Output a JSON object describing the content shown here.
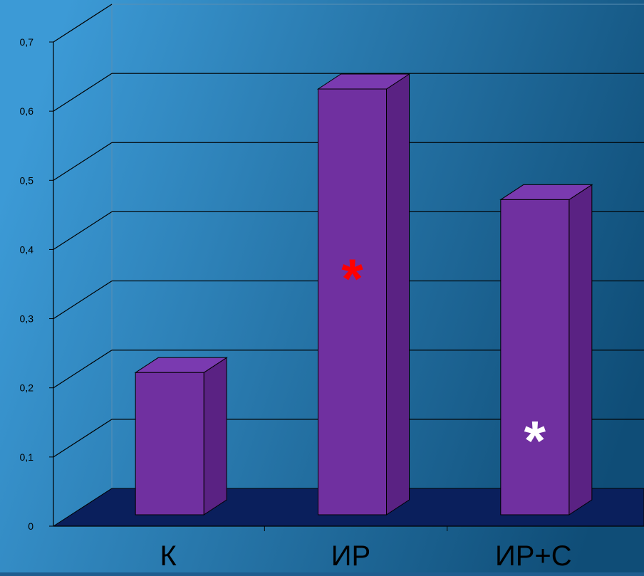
{
  "chart_data": {
    "type": "bar",
    "title": "",
    "xlabel": "",
    "ylabel": "",
    "categories": [
      "К",
      "ИР",
      "ИР+С"
    ],
    "series": [
      {
        "values": [
          0.22,
          0.63,
          0.47
        ]
      }
    ],
    "ylim": [
      0,
      0.7
    ],
    "yticks": [
      "0",
      "0,1",
      "0,2",
      "0,3",
      "0,4",
      "0,5",
      "0,6",
      "0,7"
    ],
    "grid": true,
    "three_d": true,
    "annotations": [
      {
        "category": "ИР",
        "text": "*",
        "color": "#ff0000"
      },
      {
        "category": "ИР+С",
        "text": "*",
        "color": "#ffffff"
      }
    ],
    "colors": {
      "bar_front": "#7030a0",
      "bar_side": "#5a2283",
      "bar_top": "#7a3ab0",
      "floor": "#0a1f5c",
      "background_light": "#3c9ad6",
      "background_dark": "#0f4d77",
      "axis_text": "#000000",
      "category_text": "#000000"
    }
  }
}
